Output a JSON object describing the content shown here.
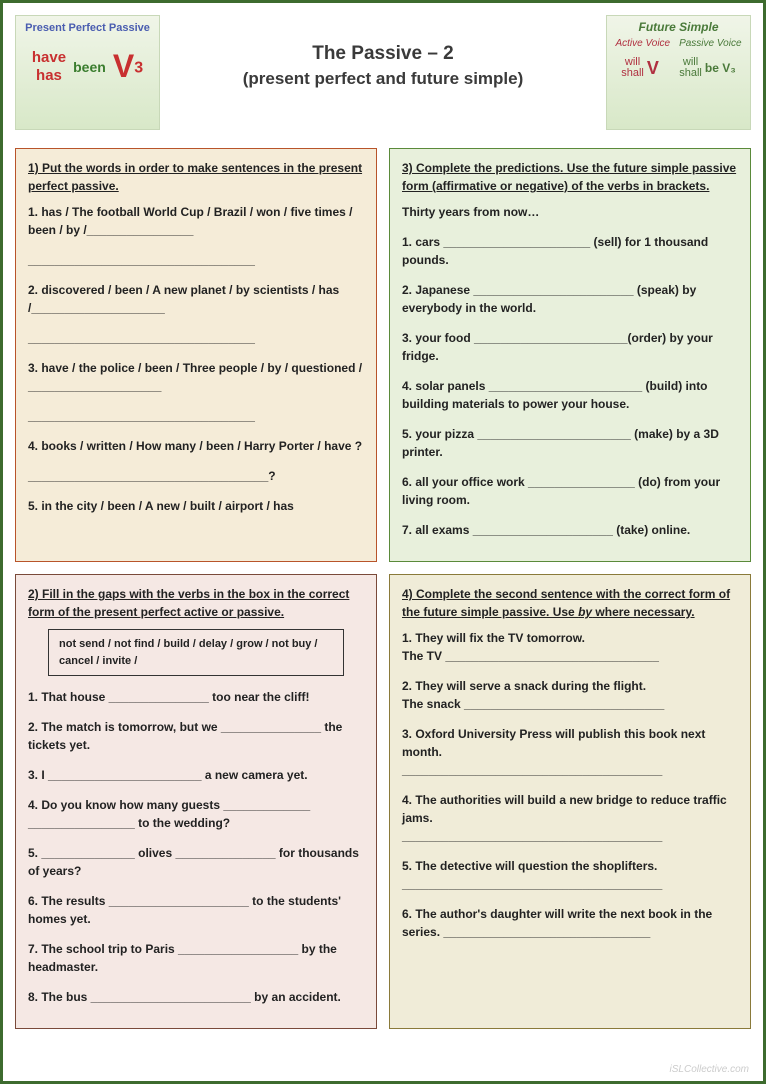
{
  "header": {
    "left_badge": {
      "title": "Present Perfect Passive",
      "have": "have",
      "has": "has",
      "been": "been",
      "v": "V",
      "sub": "3"
    },
    "center": {
      "title": "The Passive – 2",
      "subtitle": "(present perfect and future simple)"
    },
    "right_badge": {
      "title": "Future Simple",
      "active": "Active Voice",
      "passive": "Passive Voice",
      "will": "will",
      "shall": "shall",
      "v": "V",
      "be": "be",
      "v3": "V₃"
    }
  },
  "box1": {
    "instr": "1) Put the words in order to make sentences in the present perfect passive.",
    "items": [
      "1. has / The football World Cup / Brazil / won / five times / been / by /________________",
      "2. discovered / been / A new planet / by scientists / has /____________________",
      "3. have / the police / been / Three people / by / questioned / ____________________",
      "4. books / written / How many / been / Harry Porter / have ?",
      "____________________________________?",
      "5. in the city / been / A new / built / airport / has"
    ]
  },
  "box3": {
    "instr": "3) Complete the predictions. Use the future simple passive form (affirmative or negative) of the verbs in brackets.",
    "lead": "Thirty years from now…",
    "items": [
      "1. cars ______________________ (sell) for 1 thousand pounds.",
      "2. Japanese ________________________ (speak) by everybody in the world.",
      "3. your food _______________________(order) by your fridge.",
      "4. solar panels _______________________ (build) into building materials to power your house.",
      "5. your pizza _______________________ (make) by a 3D printer.",
      "6. all your office work ________________ (do) from your living room.",
      "7. all exams _____________________ (take) online."
    ]
  },
  "box2": {
    "instr": "2) Fill in the gaps with the verbs in the box in the correct form of the present perfect active or passive.",
    "verbs": "not send / not find / build / delay / grow / not buy / cancel / invite /",
    "items": [
      "1. That house _______________ too near the cliff!",
      "2. The match is tomorrow, but we _______________ the tickets yet.",
      "3. I _______________________ a new camera yet.",
      "4. Do you know how many guests _____________ ________________ to the wedding?",
      "5. ______________ olives _______________ for thousands of years?",
      "6. The results _____________________ to the students' homes yet.",
      "7. The school trip to Paris __________________ by the headmaster.",
      "8. The bus ________________________ by an accident."
    ]
  },
  "box4": {
    "instr_a": "4) Complete the second sentence with the correct form of the future simple passive. Use ",
    "instr_by": "by",
    "instr_b": " where necessary.",
    "items": [
      "1. They will fix the TV tomorrow.\nThe TV ________________________________",
      "2. They will serve a snack during the flight.\nThe snack ______________________________",
      "3. Oxford University Press will publish this book next month.\n_______________________________________",
      "4. The authorities will build a new bridge to reduce traffic jams.\n_______________________________________",
      "5. The detective will question the shoplifters.\n_______________________________________",
      "6. The author's daughter will write the next book in the series. _______________________________"
    ]
  },
  "watermark": "iSLCollective.com"
}
